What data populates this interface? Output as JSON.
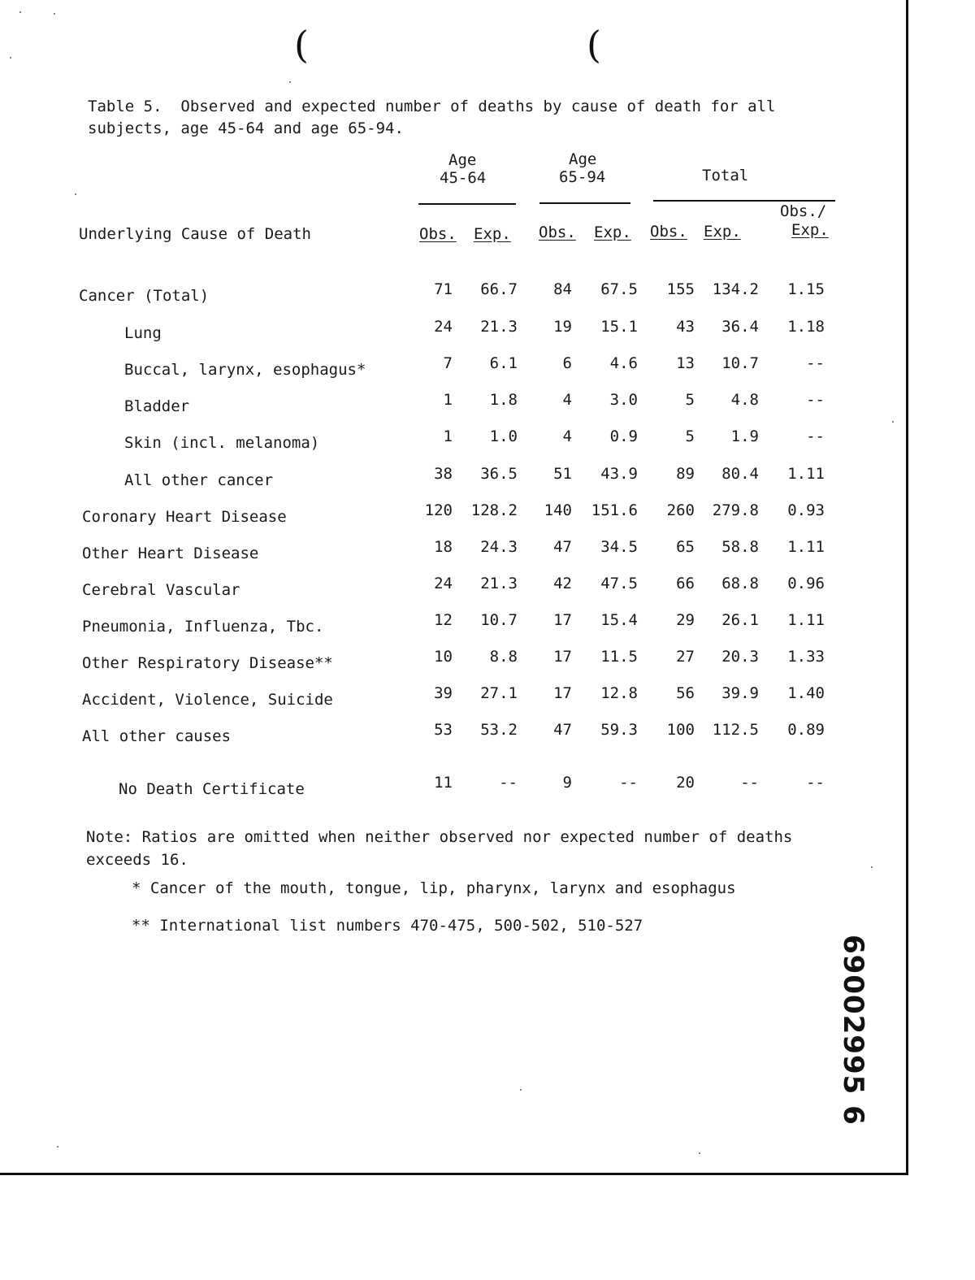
{
  "title": "Table 5.  Observed and expected number of deaths by cause of death for all subjects, age 45-64 and age 65-94.",
  "headers": {
    "age1_line1": "Age",
    "age1_line2": "45-64",
    "age2_line1": "Age",
    "age2_line2": "65-94",
    "total": "Total",
    "cause": "Underlying Cause of Death",
    "obs": "Obs.",
    "exp": "Exp.",
    "ratio_line1": "Obs./",
    "ratio_line2": "Exp."
  },
  "rows": [
    {
      "label": "Cancer (Total)",
      "indent": false,
      "o1": "71",
      "e1": "66.7",
      "o2": "84",
      "e2": "67.5",
      "ot": "155",
      "et": "134.2",
      "r": "1.15"
    },
    {
      "label": "Lung",
      "indent": true,
      "o1": "24",
      "e1": "21.3",
      "o2": "19",
      "e2": "15.1",
      "ot": "43",
      "et": "36.4",
      "r": "1.18"
    },
    {
      "label": "Buccal, larynx, esophagus*",
      "indent": true,
      "o1": "7",
      "e1": "6.1",
      "o2": "6",
      "e2": "4.6",
      "ot": "13",
      "et": "10.7",
      "r": "--"
    },
    {
      "label": "Bladder",
      "indent": true,
      "o1": "1",
      "e1": "1.8",
      "o2": "4",
      "e2": "3.0",
      "ot": "5",
      "et": "4.8",
      "r": "--"
    },
    {
      "label": "Skin (incl. melanoma)",
      "indent": true,
      "o1": "1",
      "e1": "1.0",
      "o2": "4",
      "e2": "0.9",
      "ot": "5",
      "et": "1.9",
      "r": "--"
    },
    {
      "label": "All other cancer",
      "indent": true,
      "o1": "38",
      "e1": "36.5",
      "o2": "51",
      "e2": "43.9",
      "ot": "89",
      "et": "80.4",
      "r": "1.11"
    },
    {
      "label": "Coronary Heart Disease",
      "indent": false,
      "o1": "120",
      "e1": "128.2",
      "o2": "140",
      "e2": "151.6",
      "ot": "260",
      "et": "279.8",
      "r": "0.93"
    },
    {
      "label": "Other Heart Disease",
      "indent": false,
      "o1": "18",
      "e1": "24.3",
      "o2": "47",
      "e2": "34.5",
      "ot": "65",
      "et": "58.8",
      "r": "1.11"
    },
    {
      "label": "Cerebral Vascular",
      "indent": false,
      "o1": "24",
      "e1": "21.3",
      "o2": "42",
      "e2": "47.5",
      "ot": "66",
      "et": "68.8",
      "r": "0.96"
    },
    {
      "label": "Pneumonia, Influenza, Tbc.",
      "indent": false,
      "o1": "12",
      "e1": "10.7",
      "o2": "17",
      "e2": "15.4",
      "ot": "29",
      "et": "26.1",
      "r": "1.11"
    },
    {
      "label": "Other Respiratory Disease**",
      "indent": false,
      "o1": "10",
      "e1": "8.8",
      "o2": "17",
      "e2": "11.5",
      "ot": "27",
      "et": "20.3",
      "r": "1.33"
    },
    {
      "label": "Accident, Violence, Suicide",
      "indent": false,
      "o1": "39",
      "e1": "27.1",
      "o2": "17",
      "e2": "12.8",
      "ot": "56",
      "et": "39.9",
      "r": "1.40"
    },
    {
      "label": "All other causes",
      "indent": false,
      "o1": "53",
      "e1": "53.2",
      "o2": "47",
      "e2": "59.3",
      "ot": "100",
      "et": "112.5",
      "r": "0.89"
    },
    {
      "label": "No Death Certificate",
      "indent": true,
      "o1": "11",
      "e1": "--",
      "o2": "9",
      "e2": "--",
      "ot": "20",
      "et": "--",
      "r": "--"
    }
  ],
  "note": "Note: Ratios are omitted when neither observed nor expected number of deaths exceeds 16.",
  "footnote1": "* Cancer of the mouth, tongue, lip, pharynx, larynx and esophagus",
  "footnote2": "** International list numbers 470-475, 500-502, 510-527",
  "stamp": "69002995 6"
}
